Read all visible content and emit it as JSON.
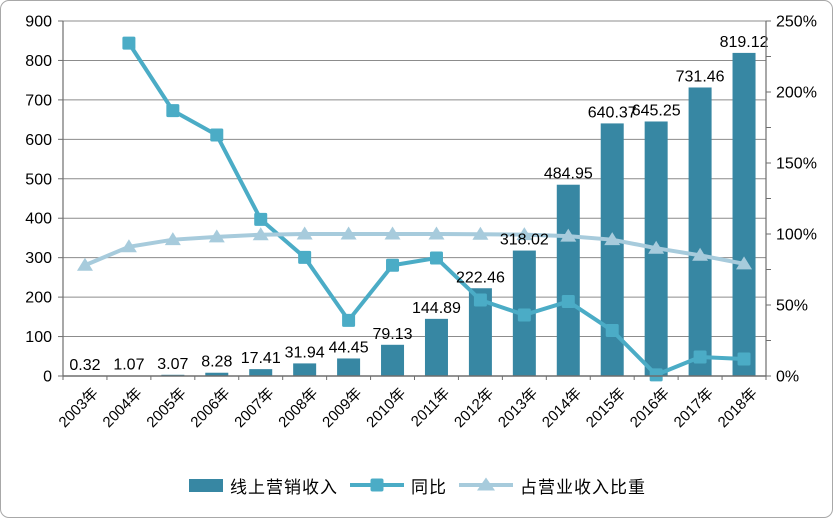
{
  "chart_data": {
    "type": "combo-bar-line",
    "title": "",
    "categories": [
      "2003年",
      "2004年",
      "2005年",
      "2006年",
      "2007年",
      "2008年",
      "2009年",
      "2010年",
      "2011年",
      "2012年",
      "2013年",
      "2014年",
      "2015年",
      "2016年",
      "2017年",
      "2018年"
    ],
    "series": [
      {
        "name": "线上营销收入",
        "type": "bar",
        "axis": "left",
        "values": [
          0.32,
          1.07,
          3.07,
          8.28,
          17.41,
          31.94,
          44.45,
          79.13,
          144.89,
          222.46,
          318.02,
          484.95,
          640.37,
          645.25,
          731.46,
          819.12
        ]
      },
      {
        "name": "同比",
        "type": "line",
        "marker": "square",
        "axis": "right",
        "values": [
          null,
          234.4,
          186.9,
          169.7,
          110.3,
          83.5,
          39.2,
          78.0,
          83.1,
          53.5,
          43.0,
          52.5,
          32.0,
          0.8,
          13.4,
          12.0
        ]
      },
      {
        "name": "占营业收入比重",
        "type": "line",
        "marker": "triangle",
        "axis": "right",
        "values": [
          78,
          91,
          96,
          98,
          99.5,
          100,
          100,
          100,
          100,
          99.8,
          99.6,
          98.5,
          96,
          90,
          85,
          79
        ]
      }
    ],
    "bar_labels": [
      "0.32",
      "1.07",
      "3.07",
      "8.28",
      "17.41",
      "31.94",
      "44.45",
      "79.13",
      "144.89",
      "222.46",
      "318.02",
      "484.95",
      "640.37",
      "645.25",
      "731.46",
      "819.12"
    ],
    "left_axis": {
      "min": 0,
      "max": 900,
      "step": 100,
      "ticks": [
        "0",
        "100",
        "200",
        "300",
        "400",
        "500",
        "600",
        "700",
        "800",
        "900"
      ]
    },
    "right_axis": {
      "min": 0,
      "max": 250,
      "step": 50,
      "minor_step": 25,
      "ticks": [
        "0%",
        "50%",
        "100%",
        "150%",
        "200%",
        "250%"
      ]
    },
    "grid": true,
    "legend_position": "bottom"
  },
  "legend": {
    "items": [
      {
        "label": "线上营销收入",
        "marker": "bar"
      },
      {
        "label": "同比",
        "marker": "square"
      },
      {
        "label": "占营业收入比重",
        "marker": "triangle"
      }
    ]
  },
  "colors": {
    "bar": "#3787A3",
    "yoy": "#4BACC6",
    "share": "#A7CBDC",
    "grid": "#8C8C8C",
    "axis": "#6E6E6E",
    "text": "#000000",
    "border": "#A8A8A8",
    "background": "#FFFFFF"
  }
}
